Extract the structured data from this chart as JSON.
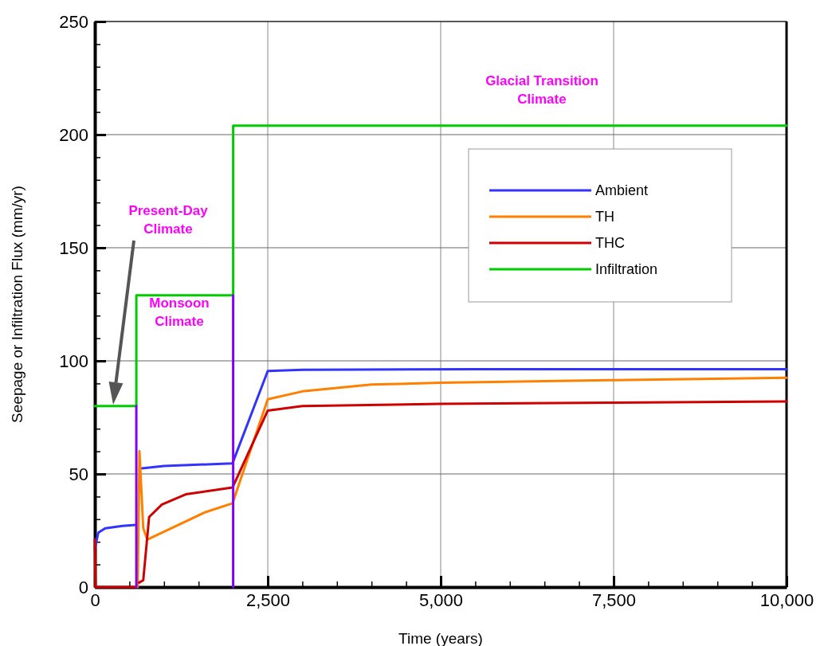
{
  "chart_data": {
    "type": "line",
    "xlabel": "Time (years)",
    "ylabel": "Seepage or Infiltration Flux (mm/yr)",
    "xlim": [
      0,
      10000
    ],
    "ylim": [
      0,
      250
    ],
    "xticks": [
      {
        "value": 0,
        "label": "0"
      },
      {
        "value": 500,
        "label": null
      },
      {
        "value": 1000,
        "label": null
      },
      {
        "value": 1500,
        "label": null
      },
      {
        "value": 2000,
        "label": null
      },
      {
        "value": 2500,
        "label": "2,500"
      },
      {
        "value": 3000,
        "label": null
      },
      {
        "value": 3500,
        "label": null
      },
      {
        "value": 4000,
        "label": null
      },
      {
        "value": 4500,
        "label": null
      },
      {
        "value": 5000,
        "label": "5,000"
      },
      {
        "value": 5500,
        "label": null
      },
      {
        "value": 6000,
        "label": null
      },
      {
        "value": 6500,
        "label": null
      },
      {
        "value": 7000,
        "label": null
      },
      {
        "value": 7500,
        "label": "7,500"
      },
      {
        "value": 8000,
        "label": null
      },
      {
        "value": 8500,
        "label": null
      },
      {
        "value": 9000,
        "label": null
      },
      {
        "value": 9500,
        "label": null
      },
      {
        "value": 10000,
        "label": "10,000"
      }
    ],
    "yticks": [
      0,
      {
        "value": 10,
        "label": null
      },
      {
        "value": 20,
        "label": null
      },
      {
        "value": 30,
        "label": null
      },
      {
        "value": 40,
        "label": null
      },
      50,
      {
        "value": 60,
        "label": null
      },
      {
        "value": 70,
        "label": null
      },
      {
        "value": 80,
        "label": null
      },
      {
        "value": 90,
        "label": null
      },
      100,
      {
        "value": 110,
        "label": null
      },
      {
        "value": 120,
        "label": null
      },
      {
        "value": 130,
        "label": null
      },
      {
        "value": 140,
        "label": null
      },
      150,
      {
        "value": 160,
        "label": null
      },
      {
        "value": 170,
        "label": null
      },
      {
        "value": 180,
        "label": null
      },
      {
        "value": 190,
        "label": null
      },
      200,
      {
        "value": 210,
        "label": null
      },
      {
        "value": 220,
        "label": null
      },
      {
        "value": 230,
        "label": null
      },
      {
        "value": 240,
        "label": null
      },
      250
    ],
    "grid": true,
    "legend": "top right",
    "line_style": "solid",
    "marker": "none",
    "series": [
      {
        "name": "Ambient",
        "color": "#3333ff",
        "x": [
          0,
          50,
          150,
          400,
          590,
          600,
          680,
          1000,
          1990,
          2500,
          3000,
          5500,
          10000
        ],
        "values": [
          17,
          24,
          26,
          27,
          27.5,
          null,
          52.5,
          53.5,
          54.7,
          95.5,
          96,
          96.3,
          96.3
        ]
      },
      {
        "name": "TH",
        "color": "#ff8000",
        "x": [
          620,
          645,
          700,
          760,
          1590,
          1990,
          2500,
          3000,
          4000,
          5000,
          7500,
          10000
        ],
        "values": [
          0,
          60,
          26,
          21,
          33,
          37,
          83,
          86.5,
          89.5,
          90.3,
          91.5,
          92.5
        ]
      },
      {
        "name": "THC",
        "color": "#d00000",
        "x": [
          0,
          10,
          590,
          600,
          640,
          700,
          785,
          970,
          1315,
          1990,
          2500,
          3000,
          5000,
          7500,
          10000
        ],
        "values": [
          21,
          0,
          0,
          null,
          2,
          3,
          31,
          36.5,
          41,
          44,
          78,
          80,
          81,
          81.5,
          82
        ]
      },
      {
        "name": "Infiltration",
        "type": "step",
        "color": "#00cc00",
        "x": [
          0,
          600,
          2000,
          10000
        ],
        "values": [
          80,
          129,
          204,
          204
        ]
      },
      {
        "type": "line",
        "color": "#8000ff",
        "x": [
          600,
          600
        ],
        "values": [
          0,
          80
        ]
      },
      {
        "type": "line",
        "color": "#8000ff",
        "x": [
          2000,
          2000
        ],
        "values": [
          0,
          129
        ]
      }
    ],
    "annotations": [
      "Present-Day Climate",
      "Monsoon Climate",
      "Glacial Transition Climate"
    ]
  }
}
